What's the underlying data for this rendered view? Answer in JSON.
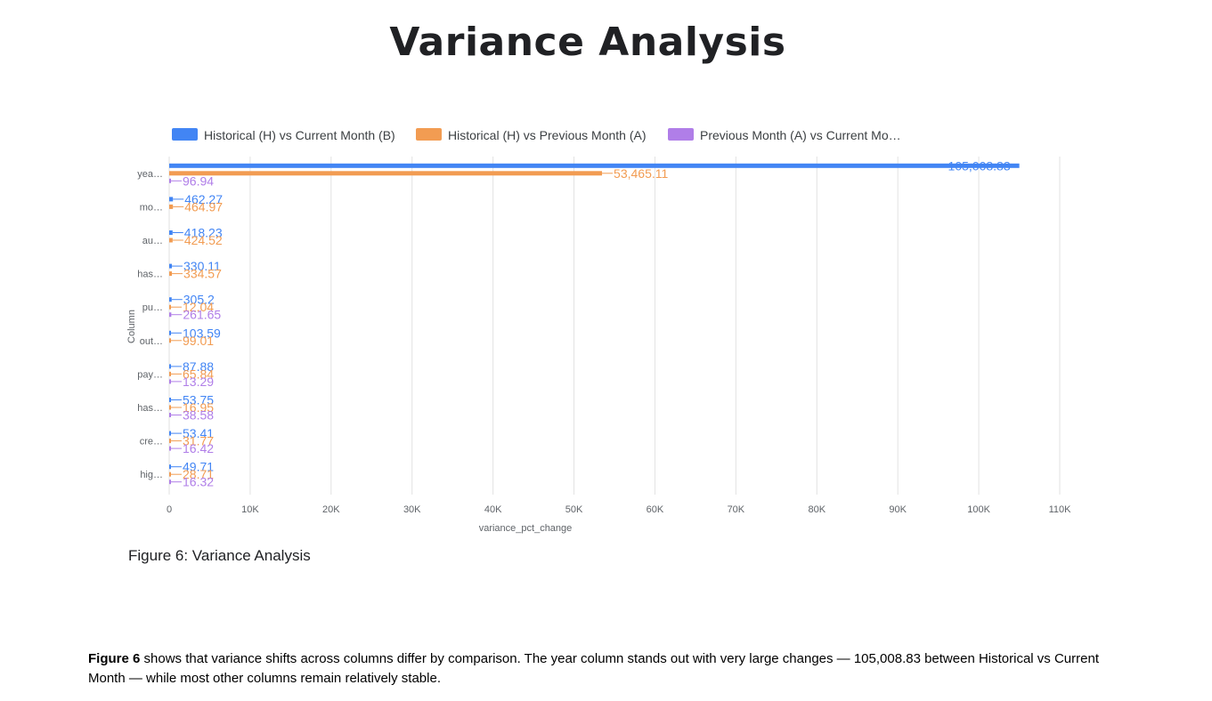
{
  "page": {
    "title": "Variance Analysis",
    "figure_caption": "Figure 6: Variance Analysis",
    "summary_lead": "Figure 6",
    "summary_text": " shows that variance shifts across columns differ by comparison. The year column stands out with very large changes — 105,008.83 between Historical vs Current Month — while most other columns remain relatively stable."
  },
  "colors": {
    "series_1": "#4285f4",
    "series_2": "#f29c52",
    "series_3": "#b07ee8",
    "grid": "#e2e2e2",
    "axis_text": "#5f6368"
  },
  "chart_data": {
    "type": "bar",
    "orientation": "horizontal",
    "categories": [
      "yea…",
      "mo…",
      "au…",
      "has…",
      "pu…",
      "out…",
      "pay…",
      "has…",
      "cre…",
      "hig…"
    ],
    "series": [
      {
        "name": "Historical (H) vs Current Month (B)",
        "values": [
          105008.83,
          462.27,
          418.23,
          330.11,
          305.2,
          103.59,
          87.88,
          53.75,
          53.41,
          49.71
        ],
        "labels": [
          "105,008.83",
          "462.27",
          "418.23",
          "330.11",
          "305.2",
          "103.59",
          "87.88",
          "53.75",
          "53.41",
          "49.71"
        ]
      },
      {
        "name": "Historical (H) vs Previous Month (A)",
        "values": [
          53465.11,
          464.97,
          424.52,
          334.57,
          12.04,
          99.01,
          65.84,
          16.95,
          31.77,
          28.71
        ],
        "labels": [
          "53,465.11",
          "464.97",
          "424.52",
          "334.57",
          "12.04",
          "99.01",
          "65.84",
          "16.95",
          "31.77",
          "28.71"
        ]
      },
      {
        "name": "Previous Month (A) vs Current Mo…",
        "values": [
          96.94,
          null,
          null,
          null,
          261.65,
          null,
          13.29,
          38.58,
          16.42,
          16.32
        ],
        "labels": [
          "96.94",
          "",
          "",
          "",
          "261.65",
          "",
          "13.29",
          "38.58",
          "16.42",
          "16.32"
        ]
      }
    ],
    "xlim": [
      0,
      110000
    ],
    "xticks": [
      0,
      10000,
      20000,
      30000,
      40000,
      50000,
      60000,
      70000,
      80000,
      90000,
      100000,
      110000
    ],
    "xtick_labels": [
      "0",
      "10K",
      "20K",
      "30K",
      "40K",
      "50K",
      "60K",
      "70K",
      "80K",
      "90K",
      "100K",
      "110K"
    ],
    "xlabel": "variance_pct_change",
    "ylabel": "Column",
    "grid": true,
    "legend_position": "top"
  }
}
